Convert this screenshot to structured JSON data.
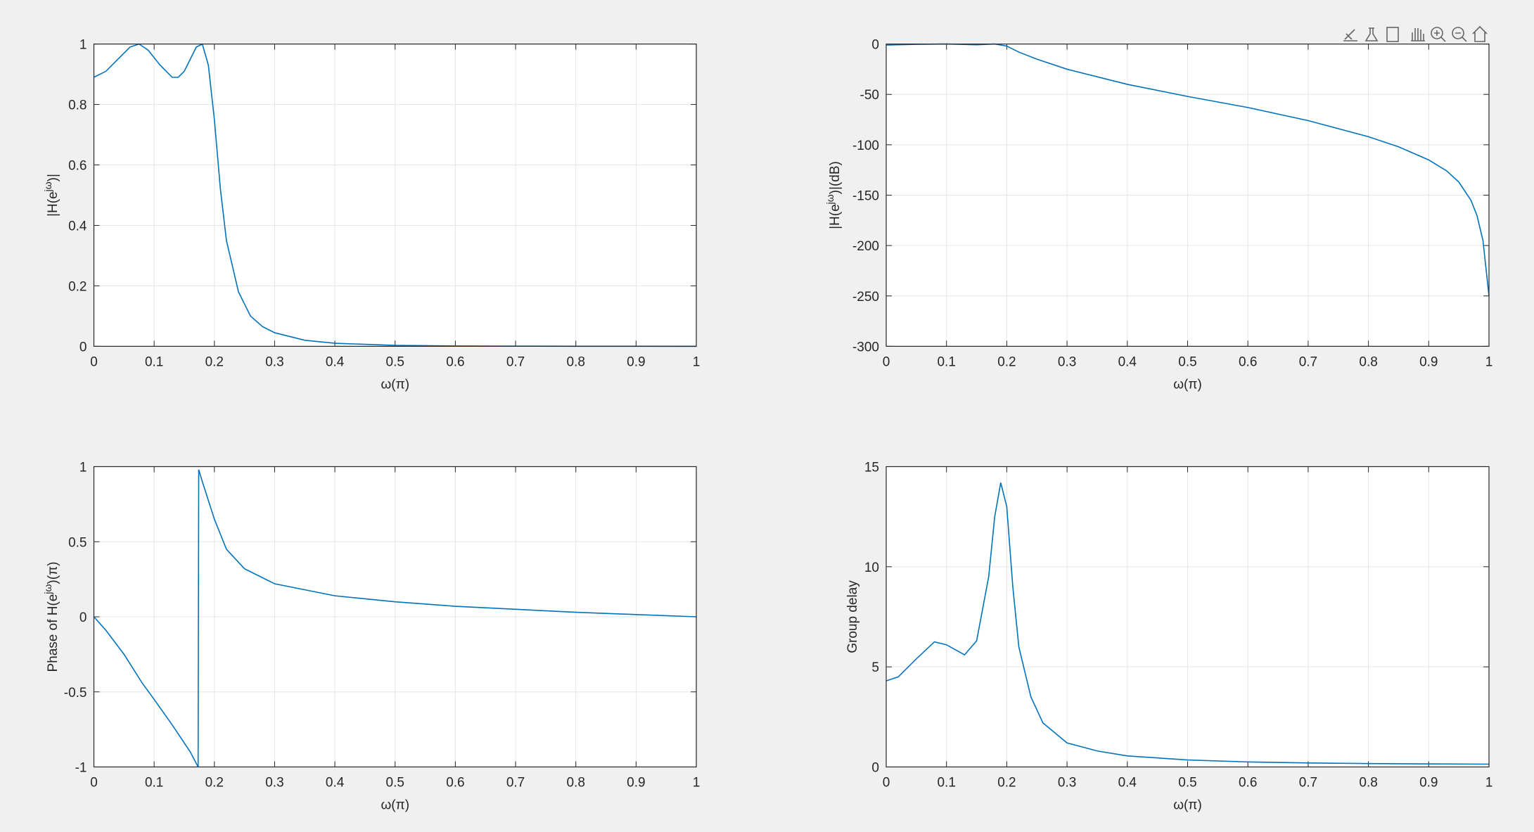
{
  "chart_data": [
    {
      "type": "line",
      "xlabel": "ω(π)",
      "ylabel": [
        "|H(e",
        "jω",
        ")|"
      ],
      "x": [
        0,
        0.02,
        0.04,
        0.06,
        0.075,
        0.09,
        0.11,
        0.13,
        0.14,
        0.15,
        0.16,
        0.17,
        0.18,
        0.19,
        0.2,
        0.21,
        0.22,
        0.24,
        0.26,
        0.28,
        0.3,
        0.35,
        0.4,
        0.5,
        0.6,
        0.7,
        0.8,
        0.9,
        1
      ],
      "series": [
        {
          "color": "#0072bd",
          "values": [
            0.89,
            0.91,
            0.95,
            0.99,
            1.0,
            0.98,
            0.93,
            0.89,
            0.89,
            0.91,
            0.95,
            0.99,
            1.0,
            0.93,
            0.75,
            0.52,
            0.35,
            0.18,
            0.1,
            0.065,
            0.045,
            0.02,
            0.01,
            0.003,
            0.001,
            0.0005,
            0.0002,
            0.0001,
            0
          ]
        }
      ],
      "xlim": [
        0,
        1
      ],
      "xticks": [
        0,
        0.1,
        0.2,
        0.3,
        0.4,
        0.5,
        0.6,
        0.7,
        0.8,
        0.9,
        1
      ],
      "ylim": [
        0,
        1
      ],
      "yticks": [
        0,
        0.2,
        0.4,
        0.6,
        0.8,
        1
      ],
      "grid": true
    },
    {
      "type": "line",
      "xlabel": "ω(π)",
      "ylabel": [
        "|H(e",
        "jω",
        ")|(dB)"
      ],
      "x": [
        0,
        0.05,
        0.1,
        0.15,
        0.18,
        0.2,
        0.22,
        0.25,
        0.3,
        0.4,
        0.5,
        0.6,
        0.7,
        0.8,
        0.85,
        0.9,
        0.93,
        0.95,
        0.97,
        0.98,
        0.99,
        1
      ],
      "series": [
        {
          "color": "#0072bd",
          "values": [
            -1,
            -0.3,
            0,
            -0.8,
            0,
            -2,
            -8,
            -15,
            -25,
            -40,
            -52,
            -63,
            -76,
            -92,
            -102,
            -115,
            -126,
            -137,
            -155,
            -170,
            -195,
            -250
          ]
        }
      ],
      "xlim": [
        0,
        1
      ],
      "xticks": [
        0,
        0.1,
        0.2,
        0.3,
        0.4,
        0.5,
        0.6,
        0.7,
        0.8,
        0.9,
        1
      ],
      "ylim": [
        -300,
        0
      ],
      "yticks": [
        -300,
        -250,
        -200,
        -150,
        -100,
        -50,
        0
      ],
      "grid": true
    },
    {
      "type": "line",
      "xlabel": "ω(π)",
      "ylabel": [
        "Phase of H(e",
        "jω",
        ")(π)"
      ],
      "x": [
        0,
        0.02,
        0.05,
        0.08,
        0.1,
        0.13,
        0.16,
        0.173,
        0.174,
        0.18,
        0.2,
        0.22,
        0.25,
        0.3,
        0.4,
        0.5,
        0.6,
        0.7,
        0.8,
        0.9,
        1
      ],
      "series": [
        {
          "color": "#0072bd",
          "values": [
            0,
            -0.09,
            -0.25,
            -0.44,
            -0.55,
            -0.72,
            -0.9,
            -1,
            0.98,
            0.9,
            0.65,
            0.45,
            0.32,
            0.22,
            0.14,
            0.1,
            0.07,
            0.05,
            0.03,
            0.015,
            0
          ]
        }
      ],
      "xlim": [
        0,
        1
      ],
      "xticks": [
        0,
        0.1,
        0.2,
        0.3,
        0.4,
        0.5,
        0.6,
        0.7,
        0.8,
        0.9,
        1
      ],
      "ylim": [
        -1,
        1
      ],
      "yticks": [
        -1,
        -0.5,
        0,
        0.5,
        1
      ],
      "grid": true
    },
    {
      "type": "line",
      "xlabel": "ω(π)",
      "ylabel": [
        "Group delay"
      ],
      "x": [
        0,
        0.02,
        0.05,
        0.08,
        0.1,
        0.13,
        0.15,
        0.17,
        0.18,
        0.19,
        0.2,
        0.21,
        0.22,
        0.24,
        0.26,
        0.3,
        0.35,
        0.4,
        0.5,
        0.6,
        0.7,
        0.8,
        0.9,
        1
      ],
      "series": [
        {
          "color": "#0072bd",
          "values": [
            4.3,
            4.5,
            5.4,
            6.25,
            6.1,
            5.6,
            6.3,
            9.5,
            12.5,
            14.2,
            13,
            9,
            6,
            3.5,
            2.2,
            1.2,
            0.8,
            0.55,
            0.35,
            0.25,
            0.2,
            0.17,
            0.15,
            0.14
          ]
        }
      ],
      "xlim": [
        0,
        1
      ],
      "xticks": [
        0,
        0.1,
        0.2,
        0.3,
        0.4,
        0.5,
        0.6,
        0.7,
        0.8,
        0.9,
        1
      ],
      "ylim": [
        0,
        15
      ],
      "yticks": [
        0,
        5,
        10,
        15
      ],
      "grid": true
    }
  ]
}
